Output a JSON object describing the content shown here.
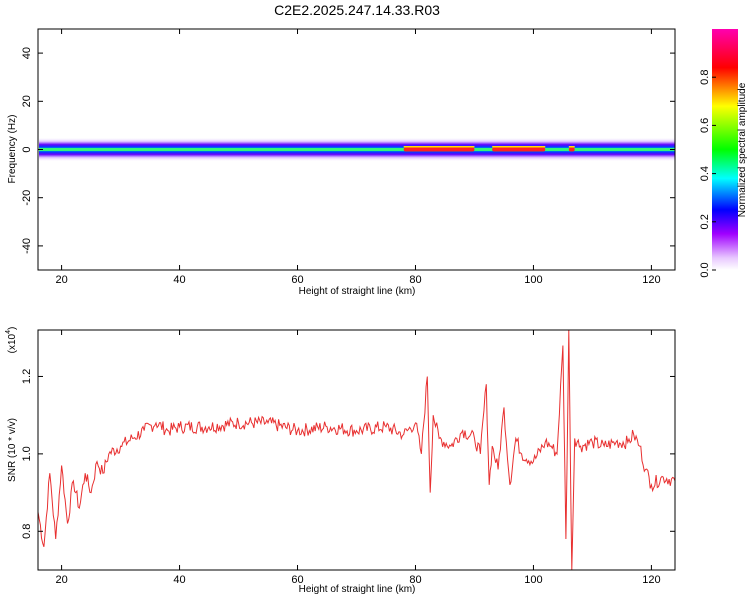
{
  "title": "C2E2.2025.247.14.33.R03",
  "colorbar": {
    "label": "Normalized spectral amplitude",
    "ticks": [
      "0.0",
      "0.2",
      "0.4",
      "0.6",
      "0.8"
    ],
    "tick_values": [
      0.0,
      0.2,
      0.4,
      0.6,
      0.8
    ],
    "range": [
      0,
      1
    ],
    "colormap": [
      "#ffffff",
      "#c000ff",
      "#0000ff",
      "#00ffff",
      "#00ff00",
      "#ffff00",
      "#ff0000",
      "#ff00ff"
    ]
  },
  "chart_data": [
    {
      "type": "heatmap",
      "xlabel": "Height of straight line (km)",
      "ylabel": "Frequency (Hz)",
      "xlim": [
        16,
        124
      ],
      "ylim": [
        -50,
        50
      ],
      "xticks": [
        20,
        40,
        60,
        80,
        100,
        120
      ],
      "yticks": [
        40,
        20,
        0,
        -20,
        -40
      ],
      "band_center_hz": 0,
      "band_halfwidth_hz": 5,
      "peak_segments_km": [
        [
          78,
          90
        ],
        [
          93,
          102
        ],
        [
          106,
          107
        ]
      ]
    },
    {
      "type": "line",
      "xlabel": "Height of straight line (km)",
      "ylabel": "SNR (10 * v/v)",
      "y_scale_label": "(x10",
      "y_scale_exp": "4",
      "xlim": [
        16,
        124
      ],
      "ylim": [
        0.7,
        1.32
      ],
      "xticks": [
        20,
        40,
        60,
        80,
        100,
        120
      ],
      "yticks": [
        0.8,
        1.0,
        1.2
      ],
      "series": [
        {
          "color": "#e83030",
          "x": [
            16,
            17,
            18,
            19,
            20,
            21,
            22,
            23,
            24,
            25,
            26,
            27,
            28,
            30,
            32,
            34,
            36,
            38,
            40,
            45,
            50,
            55,
            60,
            65,
            70,
            75,
            78,
            80,
            81,
            82,
            82.5,
            83,
            84,
            86,
            88,
            90,
            91,
            92,
            92.5,
            93,
            94,
            95,
            96,
            97,
            98,
            100,
            102,
            103,
            104,
            105,
            105.5,
            106,
            106.5,
            107,
            108,
            110,
            112,
            114,
            116,
            117,
            118,
            119,
            120,
            122,
            124
          ],
          "y": [
            0.85,
            0.76,
            0.95,
            0.78,
            0.97,
            0.82,
            0.93,
            0.86,
            0.95,
            0.9,
            0.98,
            0.95,
            1.0,
            1.02,
            1.04,
            1.06,
            1.08,
            1.06,
            1.07,
            1.07,
            1.08,
            1.08,
            1.06,
            1.07,
            1.06,
            1.07,
            1.05,
            1.08,
            1.0,
            1.2,
            0.9,
            1.1,
            1.04,
            1.02,
            1.06,
            1.04,
            1.0,
            1.18,
            0.92,
            1.02,
            0.96,
            1.12,
            0.92,
            1.04,
            1.0,
            0.98,
            1.03,
            1.02,
            1.0,
            1.28,
            0.78,
            1.32,
            0.7,
            1.04,
            1.02,
            1.03,
            1.02,
            1.03,
            1.03,
            1.05,
            1.02,
            0.96,
            0.92,
            0.94,
            0.93
          ]
        }
      ]
    }
  ]
}
